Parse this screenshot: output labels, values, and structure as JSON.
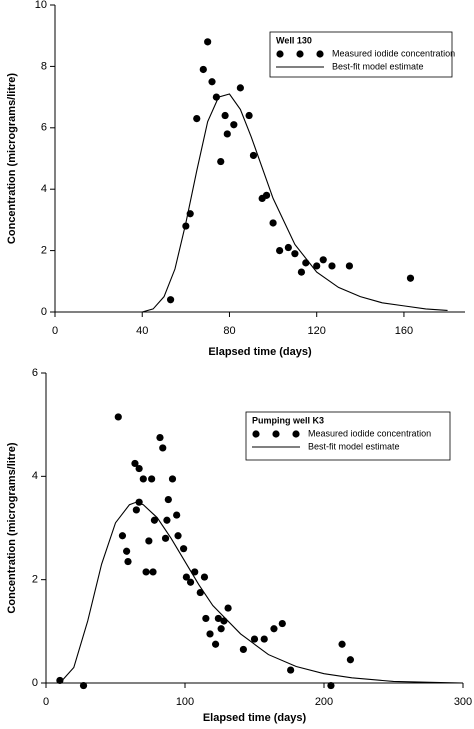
{
  "chart_data": [
    {
      "type": "scatter",
      "xlabel": "Elapsed time (days)",
      "ylabel": "Concentration (micrograms/litre)",
      "legend_title": "Well 130",
      "xlim": [
        0,
        188
      ],
      "xticks": [
        0,
        40,
        80,
        120,
        160
      ],
      "ylim": [
        0,
        10
      ],
      "yticks": [
        0,
        2,
        4,
        6,
        8,
        10
      ],
      "series": [
        {
          "name": "Measured iodide concentration",
          "type": "scatter",
          "color": "#000000",
          "x": [
            53,
            60,
            62,
            65,
            68,
            70,
            72,
            74,
            76,
            78,
            79,
            82,
            85,
            89,
            91,
            95,
            97,
            100,
            103,
            107,
            110,
            113,
            115,
            120,
            123,
            127,
            135,
            163
          ],
          "values": [
            0.4,
            2.8,
            3.2,
            6.3,
            7.9,
            8.8,
            7.5,
            7.0,
            4.9,
            6.4,
            5.8,
            6.1,
            7.3,
            6.4,
            5.1,
            3.7,
            3.8,
            2.9,
            2.0,
            2.1,
            1.9,
            1.3,
            1.6,
            1.5,
            1.7,
            1.5,
            1.5,
            1.1
          ]
        },
        {
          "name": "Best-fit model estimate",
          "type": "line",
          "color": "#000000",
          "x": [
            40,
            45,
            50,
            55,
            60,
            65,
            70,
            75,
            80,
            85,
            90,
            95,
            100,
            110,
            120,
            130,
            140,
            150,
            160,
            170,
            180
          ],
          "values": [
            0,
            0.1,
            0.5,
            1.4,
            2.9,
            4.6,
            6.2,
            7.0,
            7.1,
            6.6,
            5.7,
            4.7,
            3.7,
            2.2,
            1.3,
            0.8,
            0.5,
            0.3,
            0.2,
            0.1,
            0.05
          ]
        }
      ]
    },
    {
      "type": "scatter",
      "xlabel": "Elapsed time (days)",
      "ylabel": "Concentration (micrograms/litre)",
      "legend_title": "Pumping well K3",
      "xlim": [
        0,
        300
      ],
      "xticks": [
        0,
        100,
        200,
        300
      ],
      "ylim": [
        0,
        6
      ],
      "yticks": [
        0,
        2,
        4,
        6
      ],
      "series": [
        {
          "name": "Measured iodide concentration",
          "type": "scatter",
          "color": "#000000",
          "x": [
            10,
            27,
            52,
            55,
            58,
            59,
            64,
            65,
            67,
            67,
            70,
            72,
            74,
            76,
            77,
            78,
            82,
            84,
            86,
            87,
            88,
            91,
            94,
            95,
            99,
            101,
            104,
            107,
            111,
            114,
            115,
            118,
            122,
            124,
            126,
            128,
            131,
            142,
            150,
            157,
            164,
            170,
            176,
            205,
            213,
            219
          ],
          "values": [
            0.05,
            -0.05,
            5.15,
            2.85,
            2.55,
            2.35,
            4.25,
            3.35,
            3.5,
            4.15,
            3.95,
            2.15,
            2.75,
            3.95,
            2.15,
            3.15,
            4.75,
            4.55,
            2.8,
            3.15,
            3.55,
            3.95,
            3.25,
            2.85,
            2.6,
            2.05,
            1.95,
            2.15,
            1.75,
            2.05,
            1.25,
            0.95,
            0.75,
            1.25,
            1.05,
            1.2,
            1.45,
            0.65,
            0.85,
            0.85,
            1.05,
            1.15,
            0.25,
            -0.05,
            0.75,
            0.45
          ]
        },
        {
          "name": "Best-fit model estimate",
          "type": "line",
          "color": "#000000",
          "x": [
            10,
            20,
            30,
            40,
            50,
            60,
            65,
            70,
            80,
            90,
            100,
            110,
            120,
            140,
            160,
            180,
            200,
            220,
            250,
            280,
            300
          ],
          "values": [
            0,
            0.3,
            1.2,
            2.3,
            3.1,
            3.45,
            3.5,
            3.45,
            3.2,
            2.8,
            2.35,
            1.9,
            1.5,
            0.95,
            0.55,
            0.32,
            0.18,
            0.1,
            0.03,
            0.01,
            0
          ]
        }
      ]
    }
  ]
}
